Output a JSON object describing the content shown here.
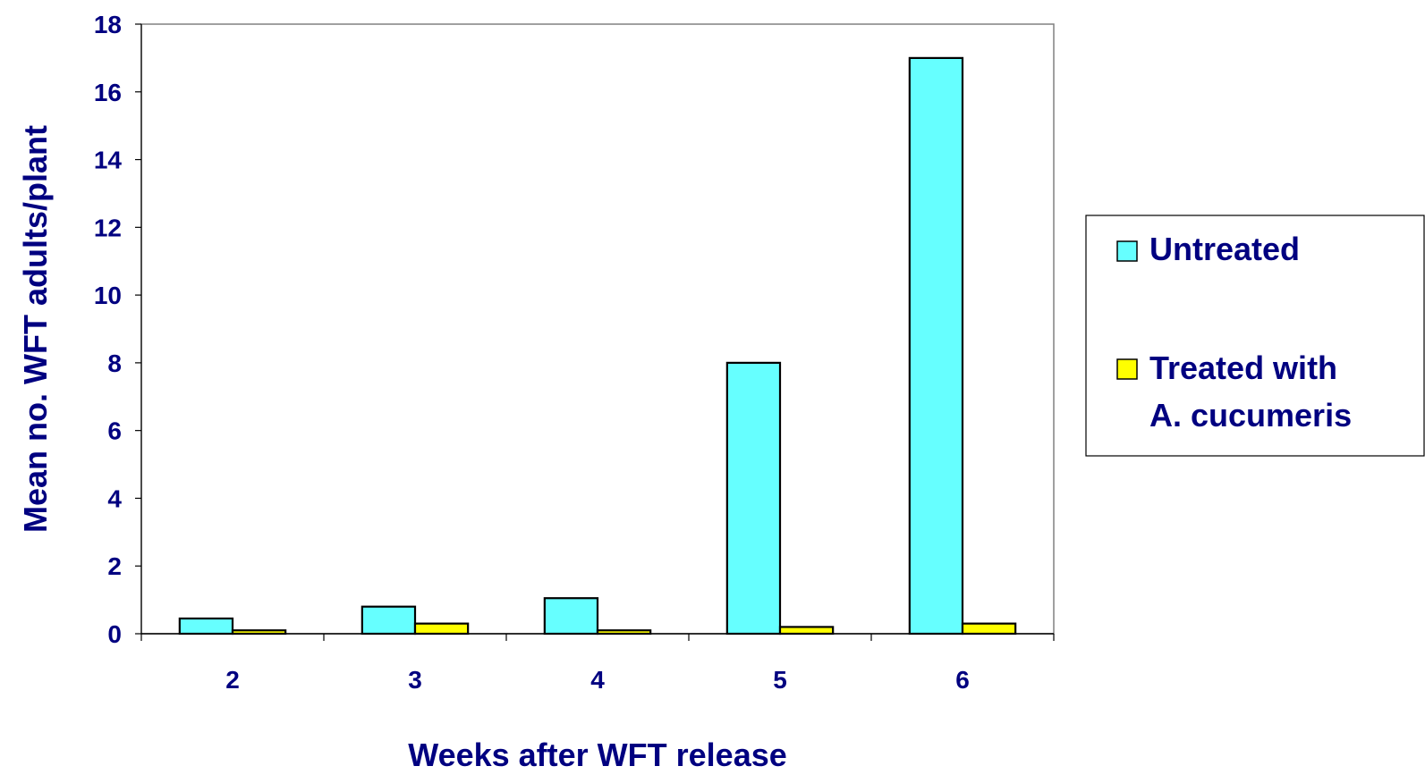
{
  "chart_data": {
    "type": "bar",
    "title": "",
    "xlabel": "Weeks after WFT release",
    "ylabel": "Mean no. WFT adults/plant",
    "categories": [
      "2",
      "3",
      "4",
      "5",
      "6"
    ],
    "series": [
      {
        "name": "Untreated",
        "values": [
          0.45,
          0.8,
          1.05,
          8.0,
          17.0
        ],
        "color": "#66FFFF"
      },
      {
        "name": "Treated with A. cucumeris",
        "name_lines": [
          "Treated with",
          "A. cucumeris"
        ],
        "values": [
          0.1,
          0.3,
          0.1,
          0.2,
          0.3
        ],
        "color": "#FFFF00"
      }
    ],
    "ylim": [
      0,
      18
    ],
    "yticks": [
      0,
      2,
      4,
      6,
      8,
      10,
      12,
      14,
      16,
      18
    ],
    "grid": false,
    "legend_position": "right",
    "text_color": "#000080"
  }
}
